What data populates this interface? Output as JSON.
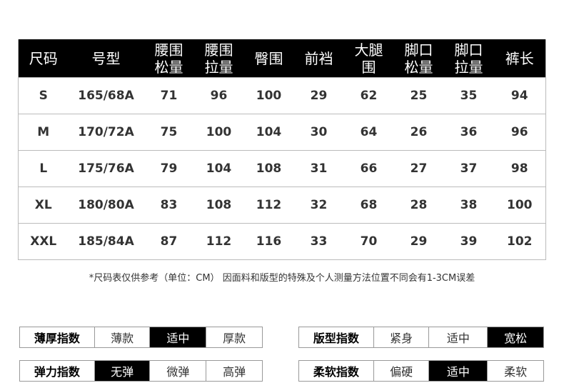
{
  "table": {
    "headers": [
      "尺码",
      "号型",
      "腰围\n松量",
      "腰围\n拉量",
      "臀围",
      "前裆",
      "大腿\n围",
      "脚口\n松量",
      "脚口\n拉量",
      "裤长"
    ],
    "rows": [
      [
        "S",
        "165/68A",
        "71",
        "96",
        "100",
        "29",
        "62",
        "25",
        "35",
        "94"
      ],
      [
        "M",
        "170/72A",
        "75",
        "100",
        "104",
        "30",
        "64",
        "26",
        "36",
        "96"
      ],
      [
        "L",
        "175/76A",
        "79",
        "104",
        "108",
        "31",
        "66",
        "27",
        "37",
        "98"
      ],
      [
        "XL",
        "180/80A",
        "83",
        "108",
        "112",
        "32",
        "68",
        "28",
        "38",
        "100"
      ],
      [
        "XXL",
        "185/84A",
        "87",
        "112",
        "116",
        "33",
        "70",
        "29",
        "39",
        "102"
      ]
    ]
  },
  "note": "*尺码表仅供参考（单位：CM） 因面料和版型的特殊及个人测量方法位置不同会有1-3CM误差",
  "indices": [
    {
      "label": "薄厚指数",
      "options": [
        "薄款",
        "适中",
        "厚款"
      ],
      "selected": 1
    },
    {
      "label": "版型指数",
      "options": [
        "紧身",
        "适中",
        "宽松"
      ],
      "selected": 2
    },
    {
      "label": "弹力指数",
      "options": [
        "无弹",
        "微弹",
        "高弹"
      ],
      "selected": 0
    },
    {
      "label": "柔软指数",
      "options": [
        "偏硬",
        "适中",
        "柔软"
      ],
      "selected": 1
    }
  ]
}
